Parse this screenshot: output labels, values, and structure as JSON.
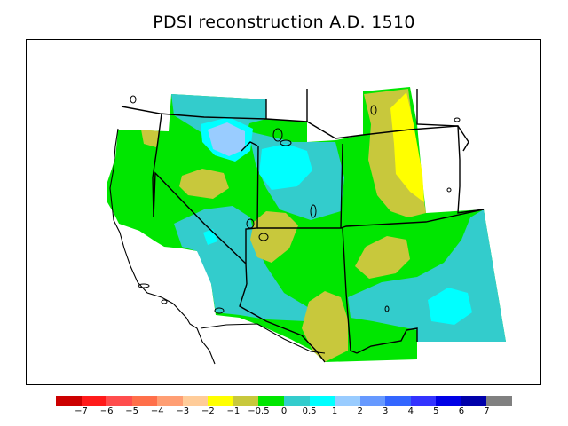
{
  "title": "PDSI reconstruction A.D. 1510",
  "legend": {
    "colors": [
      "#cc0000",
      "#ff1a1a",
      "#ff4d4d",
      "#ff6f4a",
      "#ff9e73",
      "#ffcc99",
      "#ffff00",
      "#c8c83c",
      "#00e600",
      "#33cccc",
      "#00ffff",
      "#99ccff",
      "#6699ff",
      "#3366ff",
      "#3333ff",
      "#0000e6",
      "#0000aa",
      "#808080"
    ],
    "ticks": [
      "−7",
      "−6",
      "−5",
      "−4",
      "−3",
      "−2",
      "−1",
      "−0.5",
      "0",
      "0.5",
      "1",
      "2",
      "3",
      "4",
      "5",
      "6",
      "7"
    ]
  },
  "map_colors": {
    "near_normal": "#00e600",
    "slightly_wet": "#33cccc",
    "wet": "#00ffff",
    "very_wet": "#99ccff",
    "slightly_dry": "#c8c83c",
    "dry": "#ffff00",
    "outline": "#000000"
  }
}
